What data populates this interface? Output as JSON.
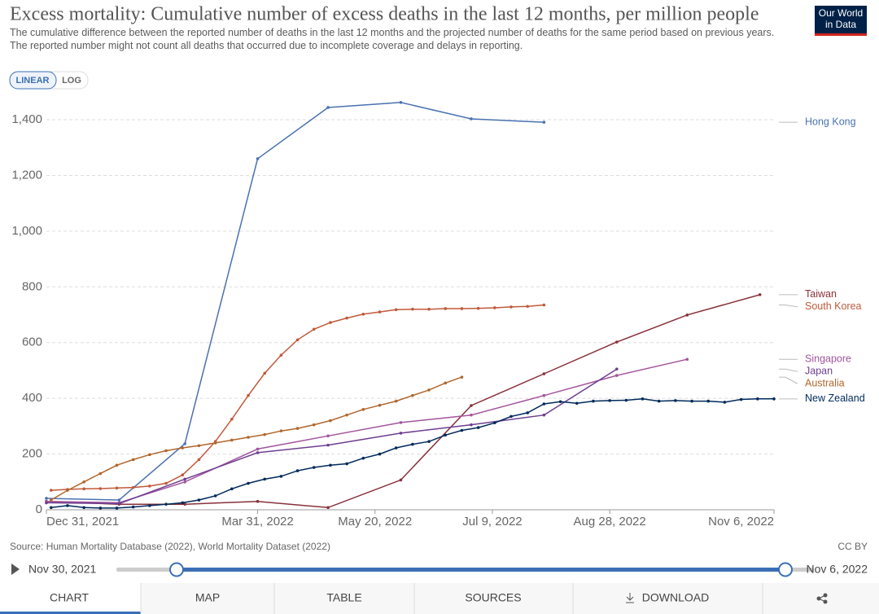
{
  "chart_data": {
    "type": "line",
    "title": "Excess mortality: Cumulative number of excess deaths in the last 12 months, per million people",
    "subtitle": "The cumulative difference between the reported number of deaths in the last 12 months and the projected number of deaths for the same period based on previous years. The reported number might not count all deaths that occurred due to incomplete coverage and delays in reporting.",
    "ylim": [
      0,
      1500
    ],
    "yticks": [
      0,
      200,
      400,
      600,
      800,
      {
        "value": 1000,
        "label": "1,000"
      },
      {
        "value": 1200,
        "label": "1,200"
      },
      {
        "value": 1400,
        "label": "1,400"
      }
    ],
    "xlim": [
      "2021-12-31",
      "2022-11-06"
    ],
    "xticks": [
      {
        "value": "2021-12-31",
        "label": "Dec 31, 2021"
      },
      {
        "value": "2022-03-31",
        "label": "Mar 31, 2022"
      },
      {
        "value": "2022-05-20",
        "label": "May 20, 2022"
      },
      {
        "value": "2022-07-09",
        "label": "Jul 9, 2022"
      },
      {
        "value": "2022-08-28",
        "label": "Aug 28, 2022"
      },
      {
        "value": "2022-11-06",
        "label": "Nov 6, 2022"
      }
    ],
    "grid": true,
    "series": [
      {
        "name": "Hong Kong",
        "color": "#4a72b0",
        "x": [
          "2021-12-31",
          "2022-01-31",
          "2022-02-28",
          "2022-03-31",
          "2022-04-30",
          "2022-05-31",
          "2022-06-30",
          "2022-07-31"
        ],
        "values": [
          41,
          35,
          237,
          1260,
          1444,
          1462,
          1403,
          1391
        ]
      },
      {
        "name": "Taiwan",
        "color": "#883039",
        "x": [
          "2021-12-31",
          "2022-01-31",
          "2022-02-28",
          "2022-03-31",
          "2022-04-30",
          "2022-05-31",
          "2022-06-30",
          "2022-07-31",
          "2022-08-31",
          "2022-09-30",
          "2022-10-31"
        ],
        "values": [
          30,
          20,
          20,
          30,
          8,
          107,
          374,
          488,
          602,
          699,
          772
        ]
      },
      {
        "name": "South Korea",
        "color": "#c05a3a",
        "x": [
          "2022-01-02",
          "2022-01-09",
          "2022-01-16",
          "2022-01-23",
          "2022-01-30",
          "2022-02-06",
          "2022-02-13",
          "2022-02-20",
          "2022-02-27",
          "2022-03-06",
          "2022-03-13",
          "2022-03-20",
          "2022-03-27",
          "2022-04-03",
          "2022-04-10",
          "2022-04-17",
          "2022-04-24",
          "2022-05-01",
          "2022-05-08",
          "2022-05-15",
          "2022-05-22",
          "2022-05-29",
          "2022-06-05",
          "2022-06-12",
          "2022-06-19",
          "2022-06-26",
          "2022-07-03",
          "2022-07-10",
          "2022-07-17",
          "2022-07-24",
          "2022-07-31"
        ],
        "values": [
          70,
          73,
          75,
          76,
          78,
          80,
          85,
          95,
          125,
          180,
          245,
          325,
          410,
          490,
          555,
          610,
          648,
          672,
          688,
          702,
          710,
          718,
          720,
          720,
          722,
          722,
          723,
          725,
          728,
          730,
          735
        ]
      },
      {
        "name": "Singapore",
        "color": "#a2559c",
        "x": [
          "2021-12-31",
          "2022-01-31",
          "2022-02-28",
          "2022-03-31",
          "2022-04-30",
          "2022-05-31",
          "2022-06-30",
          "2022-07-31",
          "2022-08-31",
          "2022-09-30"
        ],
        "values": [
          30,
          25,
          100,
          218,
          265,
          313,
          340,
          410,
          482,
          540
        ]
      },
      {
        "name": "Japan",
        "color": "#6d3e91",
        "x": [
          "2021-12-31",
          "2022-01-31",
          "2022-02-28",
          "2022-03-31",
          "2022-04-30",
          "2022-05-31",
          "2022-06-30",
          "2022-07-31",
          "2022-08-31"
        ],
        "values": [
          25,
          22,
          110,
          205,
          232,
          275,
          305,
          340,
          505
        ]
      },
      {
        "name": "Australia",
        "color": "#b1662c",
        "x": [
          "2022-01-02",
          "2022-01-09",
          "2022-01-16",
          "2022-01-23",
          "2022-01-30",
          "2022-02-06",
          "2022-02-13",
          "2022-02-20",
          "2022-02-27",
          "2022-03-06",
          "2022-03-13",
          "2022-03-20",
          "2022-03-27",
          "2022-04-03",
          "2022-04-10",
          "2022-04-17",
          "2022-04-24",
          "2022-05-01",
          "2022-05-08",
          "2022-05-15",
          "2022-05-22",
          "2022-05-29",
          "2022-06-05",
          "2022-06-12",
          "2022-06-19",
          "2022-06-26"
        ],
        "values": [
          35,
          70,
          100,
          130,
          160,
          180,
          198,
          212,
          222,
          230,
          240,
          250,
          260,
          270,
          283,
          292,
          305,
          320,
          340,
          360,
          375,
          390,
          410,
          430,
          455,
          476
        ]
      },
      {
        "name": "New Zealand",
        "color": "#00295b",
        "x": [
          "2022-01-02",
          "2022-01-09",
          "2022-01-16",
          "2022-01-23",
          "2022-01-30",
          "2022-02-06",
          "2022-02-13",
          "2022-02-20",
          "2022-02-27",
          "2022-03-06",
          "2022-03-13",
          "2022-03-20",
          "2022-03-27",
          "2022-04-03",
          "2022-04-10",
          "2022-04-17",
          "2022-04-24",
          "2022-05-01",
          "2022-05-08",
          "2022-05-15",
          "2022-05-22",
          "2022-05-29",
          "2022-06-05",
          "2022-06-12",
          "2022-06-19",
          "2022-06-26",
          "2022-07-03",
          "2022-07-10",
          "2022-07-17",
          "2022-07-24",
          "2022-07-31",
          "2022-08-07",
          "2022-08-14",
          "2022-08-21",
          "2022-08-28",
          "2022-09-04",
          "2022-09-11",
          "2022-09-18",
          "2022-09-25",
          "2022-10-02",
          "2022-10-09",
          "2022-10-16",
          "2022-10-23",
          "2022-10-30",
          "2022-11-06"
        ],
        "values": [
          8,
          15,
          8,
          6,
          6,
          10,
          15,
          20,
          25,
          35,
          50,
          75,
          95,
          110,
          120,
          140,
          152,
          160,
          165,
          185,
          200,
          222,
          235,
          245,
          268,
          285,
          295,
          312,
          335,
          348,
          380,
          388,
          382,
          390,
          392,
          393,
          398,
          390,
          392,
          390,
          390,
          386,
          396,
          398,
          398
        ]
      }
    ]
  },
  "ui": {
    "logo": [
      "Our World",
      "in Data"
    ],
    "scale_buttons": [
      "LINEAR",
      "LOG"
    ],
    "source": "Source: Human Mortality Database (2022), World Mortality Dataset (2022)",
    "license": "CC BY",
    "timeline": [
      "Nov 30, 2021",
      "Nov 6, 2022"
    ],
    "tabs": [
      "CHART",
      "MAP",
      "TABLE",
      "SOURCES",
      "DOWNLOAD"
    ]
  }
}
